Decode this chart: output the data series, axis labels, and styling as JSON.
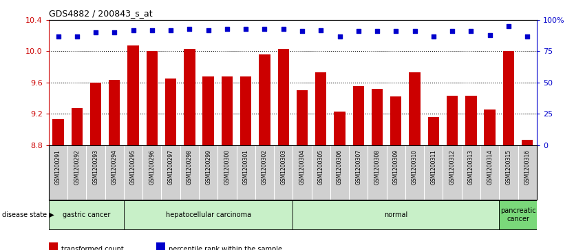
{
  "title": "GDS4882 / 200843_s_at",
  "samples": [
    "GSM1200291",
    "GSM1200292",
    "GSM1200293",
    "GSM1200294",
    "GSM1200295",
    "GSM1200296",
    "GSM1200297",
    "GSM1200298",
    "GSM1200299",
    "GSM1200300",
    "GSM1200301",
    "GSM1200302",
    "GSM1200303",
    "GSM1200304",
    "GSM1200305",
    "GSM1200306",
    "GSM1200307",
    "GSM1200308",
    "GSM1200309",
    "GSM1200310",
    "GSM1200311",
    "GSM1200312",
    "GSM1200313",
    "GSM1200314",
    "GSM1200315",
    "GSM1200316"
  ],
  "red_values": [
    9.13,
    9.27,
    9.6,
    9.63,
    10.07,
    10.0,
    9.65,
    10.03,
    9.68,
    9.68,
    9.68,
    9.96,
    10.03,
    9.5,
    9.73,
    9.23,
    9.55,
    9.52,
    9.42,
    9.73,
    9.16,
    9.43,
    9.43,
    9.25,
    10.0,
    8.87
  ],
  "blue_values": [
    87,
    87,
    90,
    90,
    92,
    92,
    92,
    93,
    92,
    93,
    93,
    93,
    93,
    91,
    92,
    87,
    91,
    91,
    91,
    91,
    87,
    91,
    91,
    88,
    95,
    87
  ],
  "ylim_left": [
    8.8,
    10.4
  ],
  "ylim_right": [
    0,
    100
  ],
  "yticks_left": [
    8.8,
    9.2,
    9.6,
    10.0,
    10.4
  ],
  "yticks_right": [
    0,
    25,
    50,
    75,
    100
  ],
  "ytick_labels_right": [
    "0",
    "25",
    "50",
    "75",
    "100%"
  ],
  "groups": [
    {
      "label": "gastric cancer",
      "start": 0,
      "end": 3,
      "color": "#c8f0c8"
    },
    {
      "label": "hepatocellular carcinoma",
      "start": 4,
      "end": 12,
      "color": "#c8f0c8"
    },
    {
      "label": "normal",
      "start": 13,
      "end": 23,
      "color": "#c8f0c8"
    },
    {
      "label": "pancreatic\ncancer",
      "start": 24,
      "end": 25,
      "color": "#7ad87a"
    }
  ],
  "bar_color": "#cc0000",
  "dot_color": "#0000cc",
  "tick_bg_color": "#d0d0d0",
  "plot_bg": "#ffffff",
  "legend_items": [
    {
      "color": "#cc0000",
      "label": "transformed count"
    },
    {
      "color": "#0000cc",
      "label": "percentile rank within the sample"
    }
  ],
  "disease_state_label": "disease state"
}
